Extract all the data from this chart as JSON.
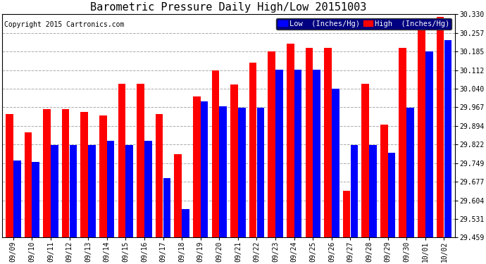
{
  "title": "Barometric Pressure Daily High/Low 20151003",
  "copyright": "Copyright 2015 Cartronics.com",
  "legend_low": "Low  (Inches/Hg)",
  "legend_high": "High  (Inches/Hg)",
  "dates": [
    "09/09",
    "09/10",
    "09/11",
    "09/12",
    "09/13",
    "09/14",
    "09/15",
    "09/16",
    "09/17",
    "09/18",
    "09/19",
    "09/20",
    "09/21",
    "09/22",
    "09/23",
    "09/24",
    "09/25",
    "09/26",
    "09/27",
    "09/28",
    "09/29",
    "09/30",
    "10/01",
    "10/02"
  ],
  "low_values": [
    29.76,
    29.755,
    29.82,
    29.82,
    29.82,
    29.835,
    29.82,
    29.835,
    29.69,
    29.57,
    29.99,
    29.97,
    29.965,
    29.965,
    30.115,
    30.115,
    30.115,
    30.04,
    29.82,
    29.82,
    29.79,
    29.965,
    30.185,
    30.23
  ],
  "high_values": [
    29.94,
    29.87,
    29.96,
    29.96,
    29.95,
    29.935,
    30.06,
    30.06,
    29.94,
    29.785,
    30.01,
    30.11,
    30.055,
    30.14,
    30.185,
    30.215,
    30.2,
    30.2,
    29.64,
    30.06,
    29.9,
    30.2,
    30.31,
    30.32
  ],
  "ylim_min": 29.459,
  "ylim_max": 30.33,
  "yticks": [
    29.459,
    29.531,
    29.604,
    29.677,
    29.749,
    29.822,
    29.894,
    29.967,
    30.04,
    30.112,
    30.185,
    30.257,
    30.33
  ],
  "bar_color_low": "#0000ff",
  "bar_color_high": "#ff0000",
  "background_color": "#ffffff",
  "grid_color": "#aaaaaa",
  "title_fontsize": 11,
  "copyright_fontsize": 7,
  "legend_fontsize": 7.5,
  "tick_fontsize": 7
}
